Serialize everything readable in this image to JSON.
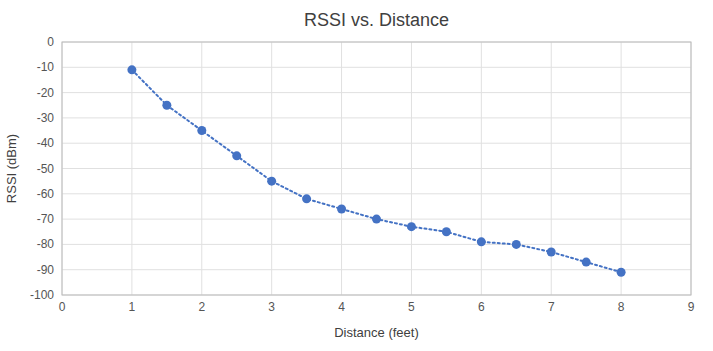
{
  "chart_data": {
    "type": "line",
    "title": "RSSI vs. Distance",
    "xlabel": "Distance (feet)",
    "ylabel": "RSSI (dBm)",
    "x": [
      1,
      1.5,
      2,
      2.5,
      3,
      3.5,
      4,
      4.5,
      5,
      5.5,
      6,
      6.5,
      7,
      7.5,
      8
    ],
    "values": [
      -11,
      -25,
      -35,
      -45,
      -55,
      -62,
      -66,
      -70,
      -73,
      -75,
      -79,
      -80,
      -83,
      -87,
      -91
    ],
    "color": "#4472C4",
    "marker": "circle",
    "line_style": "dotted",
    "xlim": [
      0,
      9
    ],
    "ylim": [
      -100,
      0
    ],
    "xticks": [
      0,
      1,
      2,
      3,
      4,
      5,
      6,
      7,
      8,
      9
    ],
    "yticks": [
      0,
      -10,
      -20,
      -30,
      -40,
      -50,
      -60,
      -70,
      -80,
      -90,
      -100
    ],
    "grid": true
  }
}
